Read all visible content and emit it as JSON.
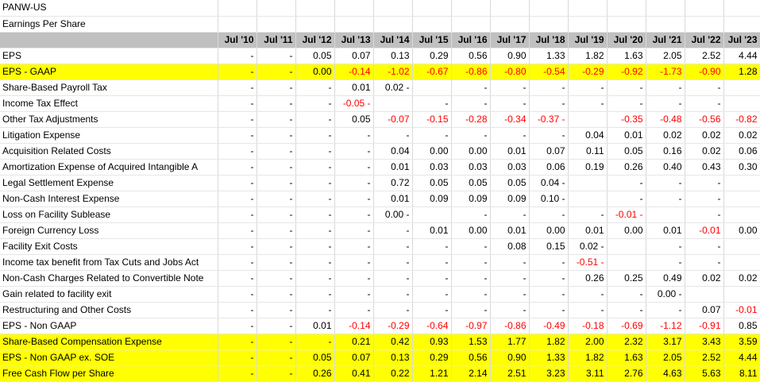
{
  "ticker": "PANW-US",
  "subtitle": "Earnings Per Share",
  "columns": [
    "Jul '10",
    "Jul '11",
    "Jul '12",
    "Jul '13",
    "Jul '14",
    "Jul '15",
    "Jul '16",
    "Jul '17",
    "Jul '18",
    "Jul '19",
    "Jul '20",
    "Jul '21",
    "Jul '22",
    "Jul '23"
  ],
  "rows": [
    {
      "label": "EPS",
      "highlight": false,
      "values": [
        "-",
        "-",
        "0.05",
        "0.07",
        "0.13",
        "0.29",
        "0.56",
        "0.90",
        "1.33",
        "1.82",
        "1.63",
        "2.05",
        "2.52",
        "4.44"
      ]
    },
    {
      "label": "EPS - GAAP",
      "highlight": true,
      "values": [
        "-",
        "-",
        "0.00",
        "-0.14",
        "-1.02",
        "-0.67",
        "-0.86",
        "-0.80",
        "-0.54",
        "-0.29",
        "-0.92",
        "-1.73",
        "-0.90",
        "1.28"
      ]
    },
    {
      "label": "Share-Based Payroll Tax",
      "highlight": false,
      "values": [
        "-",
        "-",
        "-",
        "0.01",
        "0.02 -",
        "",
        "-",
        "-",
        "-",
        "-",
        "-",
        "-",
        "-",
        ""
      ]
    },
    {
      "label": "Income Tax Effect",
      "highlight": false,
      "values": [
        "-",
        "-",
        "-",
        "-0.05 -",
        "",
        "-",
        "-",
        "-",
        "-",
        "-",
        "-",
        "-",
        "-",
        ""
      ]
    },
    {
      "label": "Other Tax Adjustments",
      "highlight": false,
      "values": [
        "-",
        "-",
        "-",
        "0.05",
        "-0.07",
        "-0.15",
        "-0.28",
        "-0.34",
        "-0.37 -",
        "",
        "-0.35",
        "-0.48",
        "-0.56",
        "-0.82"
      ]
    },
    {
      "label": "Litigation Expense",
      "highlight": false,
      "values": [
        "-",
        "-",
        "-",
        "-",
        "-",
        "-",
        "-",
        "-",
        "-",
        "0.04",
        "0.01",
        "0.02",
        "0.02",
        "0.02"
      ]
    },
    {
      "label": "Acquisition Related Costs",
      "highlight": false,
      "values": [
        "-",
        "-",
        "-",
        "-",
        "0.04",
        "0.00",
        "0.00",
        "0.01",
        "0.07",
        "0.11",
        "0.05",
        "0.16",
        "0.02",
        "0.06"
      ]
    },
    {
      "label": "Amortization Expense of Acquired Intangible A",
      "highlight": false,
      "values": [
        "-",
        "-",
        "-",
        "-",
        "0.01",
        "0.03",
        "0.03",
        "0.03",
        "0.06",
        "0.19",
        "0.26",
        "0.40",
        "0.43",
        "0.30"
      ]
    },
    {
      "label": "Legal Settlement Expense",
      "highlight": false,
      "values": [
        "-",
        "-",
        "-",
        "-",
        "0.72",
        "0.05",
        "0.05",
        "0.05",
        "0.04 -",
        "",
        "-",
        "-",
        "-",
        ""
      ]
    },
    {
      "label": "Non-Cash Interest Expense",
      "highlight": false,
      "values": [
        "-",
        "-",
        "-",
        "-",
        "0.01",
        "0.09",
        "0.09",
        "0.09",
        "0.10 -",
        "",
        "-",
        "-",
        "-",
        ""
      ]
    },
    {
      "label": "Loss on Facility Sublease",
      "highlight": false,
      "values": [
        "-",
        "-",
        "-",
        "-",
        "0.00 -",
        "",
        "-",
        "-",
        "-",
        "-",
        "-0.01 -",
        "",
        "-",
        ""
      ]
    },
    {
      "label": "Foreign Currency Loss",
      "highlight": false,
      "values": [
        "-",
        "-",
        "-",
        "-",
        "-",
        "0.01",
        "0.00",
        "0.01",
        "0.00",
        "0.01",
        "0.00",
        "0.01",
        "-0.01",
        "0.00"
      ]
    },
    {
      "label": "Facility Exit Costs",
      "highlight": false,
      "values": [
        "-",
        "-",
        "-",
        "-",
        "-",
        "-",
        "-",
        "0.08",
        "0.15",
        "0.02 -",
        "",
        "-",
        "-",
        ""
      ]
    },
    {
      "label": "Income tax benefit from Tax Cuts and Jobs Act",
      "highlight": false,
      "values": [
        "-",
        "-",
        "-",
        "-",
        "-",
        "-",
        "-",
        "-",
        "-",
        "-0.51 -",
        "",
        "-",
        "-",
        ""
      ]
    },
    {
      "label": "Non-Cash Charges Related to Convertible Note",
      "highlight": false,
      "values": [
        "-",
        "-",
        "-",
        "-",
        "-",
        "-",
        "-",
        "-",
        "-",
        "0.26",
        "0.25",
        "0.49",
        "0.02",
        "0.02"
      ]
    },
    {
      "label": "Gain related to facility exit",
      "highlight": false,
      "values": [
        "-",
        "-",
        "-",
        "-",
        "-",
        "-",
        "-",
        "-",
        "-",
        "-",
        "-",
        "0.00 -",
        "",
        ""
      ]
    },
    {
      "label": "Restructuring and Other Costs",
      "highlight": false,
      "values": [
        "-",
        "-",
        "-",
        "-",
        "-",
        "-",
        "-",
        "-",
        "-",
        "-",
        "-",
        "-",
        "0.07",
        "-0.01"
      ]
    },
    {
      "label": "EPS - Non GAAP",
      "highlight": false,
      "values": [
        "-",
        "-",
        "0.01",
        "-0.14",
        "-0.29",
        "-0.64",
        "-0.97",
        "-0.86",
        "-0.49",
        "-0.18",
        "-0.69",
        "-1.12",
        "-0.91",
        "0.85"
      ]
    },
    {
      "label": "Share-Based Compensation Expense",
      "highlight": true,
      "values": [
        "-",
        "-",
        "-",
        "0.21",
        "0.42",
        "0.93",
        "1.53",
        "1.77",
        "1.82",
        "2.00",
        "2.32",
        "3.17",
        "3.43",
        "3.59"
      ]
    },
    {
      "label": "EPS - Non GAAP ex. SOE",
      "highlight": true,
      "values": [
        "-",
        "-",
        "0.05",
        "0.07",
        "0.13",
        "0.29",
        "0.56",
        "0.90",
        "1.33",
        "1.82",
        "1.63",
        "2.05",
        "2.52",
        "4.44"
      ]
    },
    {
      "label": "Free Cash Flow per Share",
      "highlight": true,
      "values": [
        "-",
        "-",
        "0.26",
        "0.41",
        "0.22",
        "1.21",
        "2.14",
        "2.51",
        "3.23",
        "3.11",
        "2.76",
        "4.63",
        "5.63",
        "8.11"
      ]
    }
  ]
}
